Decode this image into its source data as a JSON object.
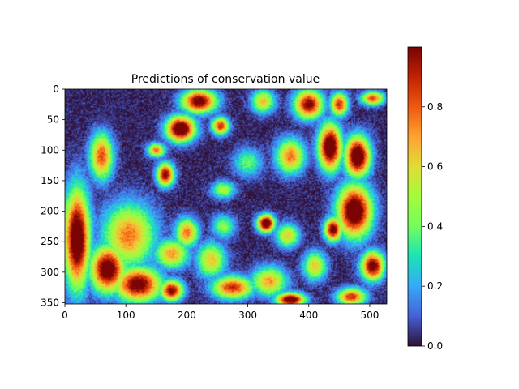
{
  "chart_data": {
    "type": "heatmap",
    "title": "Predictions of conservation value",
    "xlabel": "",
    "ylabel": "",
    "image_shape": [
      352,
      528
    ],
    "xlim": [
      0,
      528
    ],
    "ylim": [
      352,
      0
    ],
    "xticks": [
      0,
      100,
      200,
      300,
      400,
      500
    ],
    "yticks": [
      0,
      50,
      100,
      150,
      200,
      250,
      300,
      350
    ],
    "colormap": "turbo",
    "colorbar": {
      "range": [
        0.0,
        1.0
      ],
      "ticks": [
        "0.0",
        "0.2",
        "0.4",
        "0.6",
        "0.8"
      ],
      "tick_values": [
        0.0,
        0.2,
        0.4,
        0.6,
        0.8
      ],
      "placement": "right"
    },
    "hotspots": [
      {
        "x": 20,
        "y": 245,
        "rx": 22,
        "ry": 85,
        "value": 0.95
      },
      {
        "x": 70,
        "y": 295,
        "rx": 30,
        "ry": 40,
        "value": 0.9
      },
      {
        "x": 120,
        "y": 320,
        "rx": 40,
        "ry": 30,
        "value": 0.85
      },
      {
        "x": 175,
        "y": 330,
        "rx": 20,
        "ry": 18,
        "value": 0.8
      },
      {
        "x": 105,
        "y": 240,
        "rx": 45,
        "ry": 55,
        "value": 0.6
      },
      {
        "x": 60,
        "y": 110,
        "rx": 20,
        "ry": 40,
        "value": 0.65
      },
      {
        "x": 190,
        "y": 65,
        "rx": 25,
        "ry": 22,
        "value": 0.95
      },
      {
        "x": 220,
        "y": 20,
        "rx": 30,
        "ry": 20,
        "value": 0.85
      },
      {
        "x": 255,
        "y": 60,
        "rx": 15,
        "ry": 15,
        "value": 0.7
      },
      {
        "x": 165,
        "y": 140,
        "rx": 15,
        "ry": 20,
        "value": 0.8
      },
      {
        "x": 200,
        "y": 235,
        "rx": 20,
        "ry": 25,
        "value": 0.6
      },
      {
        "x": 175,
        "y": 270,
        "rx": 30,
        "ry": 25,
        "value": 0.55
      },
      {
        "x": 240,
        "y": 280,
        "rx": 25,
        "ry": 30,
        "value": 0.5
      },
      {
        "x": 275,
        "y": 325,
        "rx": 35,
        "ry": 20,
        "value": 0.7
      },
      {
        "x": 335,
        "y": 315,
        "rx": 30,
        "ry": 25,
        "value": 0.55
      },
      {
        "x": 370,
        "y": 345,
        "rx": 25,
        "ry": 12,
        "value": 0.9
      },
      {
        "x": 330,
        "y": 220,
        "rx": 15,
        "ry": 15,
        "value": 0.95
      },
      {
        "x": 365,
        "y": 240,
        "rx": 20,
        "ry": 20,
        "value": 0.5
      },
      {
        "x": 370,
        "y": 110,
        "rx": 25,
        "ry": 30,
        "value": 0.6
      },
      {
        "x": 400,
        "y": 25,
        "rx": 25,
        "ry": 25,
        "value": 0.8
      },
      {
        "x": 435,
        "y": 95,
        "rx": 20,
        "ry": 40,
        "value": 0.95
      },
      {
        "x": 480,
        "y": 110,
        "rx": 22,
        "ry": 35,
        "value": 0.95
      },
      {
        "x": 475,
        "y": 200,
        "rx": 30,
        "ry": 45,
        "value": 0.95
      },
      {
        "x": 440,
        "y": 230,
        "rx": 15,
        "ry": 20,
        "value": 0.85
      },
      {
        "x": 505,
        "y": 290,
        "rx": 20,
        "ry": 25,
        "value": 0.85
      },
      {
        "x": 470,
        "y": 340,
        "rx": 25,
        "ry": 15,
        "value": 0.7
      },
      {
        "x": 450,
        "y": 25,
        "rx": 15,
        "ry": 20,
        "value": 0.7
      },
      {
        "x": 505,
        "y": 15,
        "rx": 20,
        "ry": 12,
        "value": 0.65
      },
      {
        "x": 325,
        "y": 20,
        "rx": 20,
        "ry": 20,
        "value": 0.5
      },
      {
        "x": 260,
        "y": 165,
        "rx": 20,
        "ry": 15,
        "value": 0.4
      },
      {
        "x": 410,
        "y": 290,
        "rx": 20,
        "ry": 25,
        "value": 0.5
      },
      {
        "x": 300,
        "y": 120,
        "rx": 25,
        "ry": 25,
        "value": 0.3
      },
      {
        "x": 150,
        "y": 100,
        "rx": 15,
        "ry": 12,
        "value": 0.6
      },
      {
        "x": 260,
        "y": 225,
        "rx": 20,
        "ry": 20,
        "value": 0.35
      }
    ]
  }
}
